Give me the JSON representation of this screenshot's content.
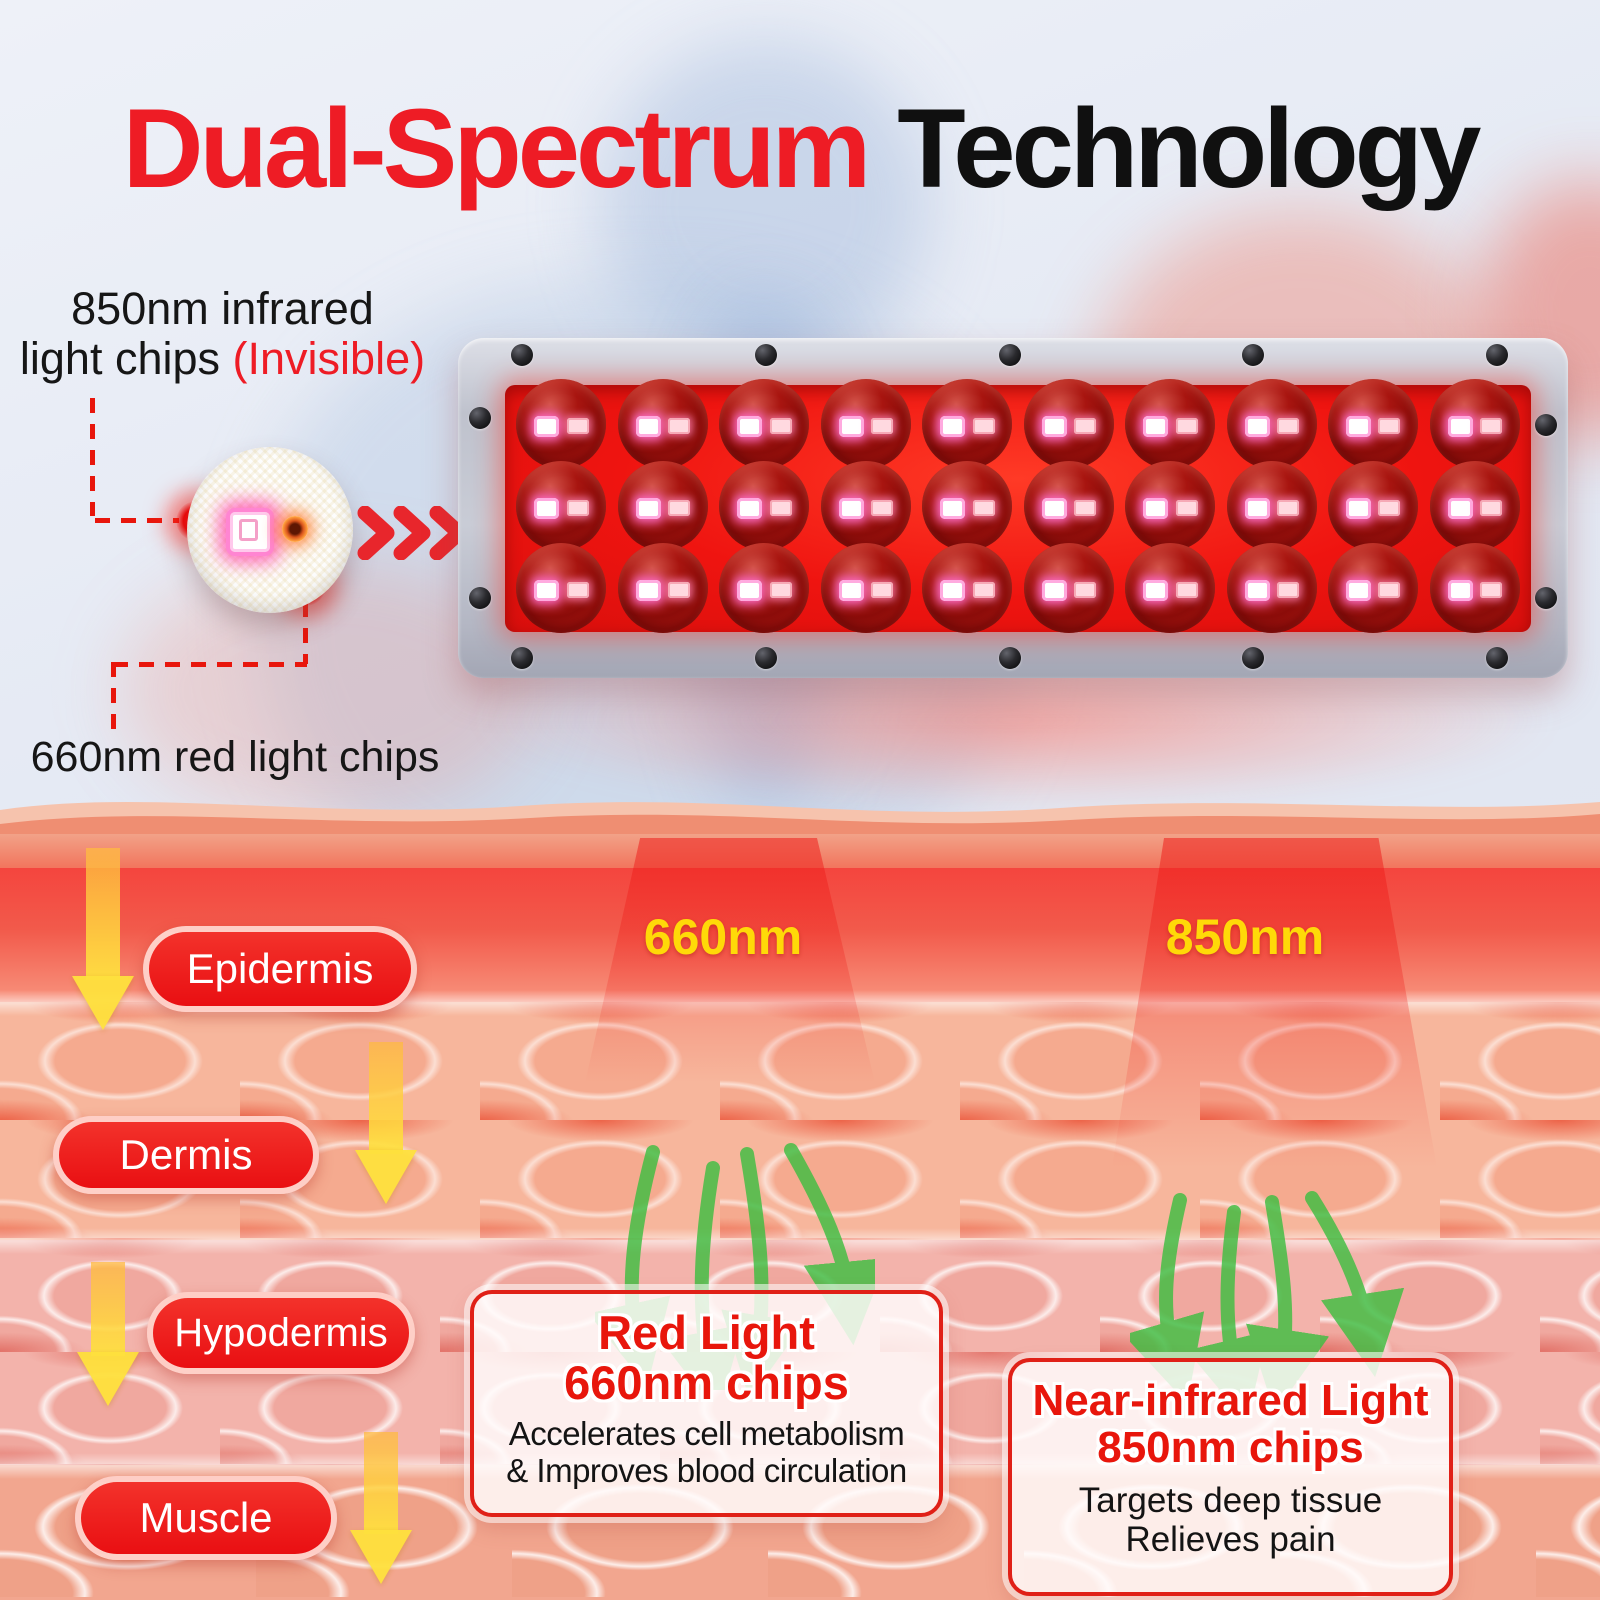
{
  "title": {
    "highlight": "Dual-Spectrum",
    "rest": "Technology"
  },
  "callout_850": {
    "line1": "850nm infrared",
    "line2_black": "light chips",
    "line2_red": "(Invisible)"
  },
  "callout_660": {
    "text": "660nm red light chips"
  },
  "beam_labels": {
    "left": "660nm",
    "right": "850nm"
  },
  "led_panel": {
    "rows": 3,
    "columns": 10,
    "chips_per_lens": 2
  },
  "skin_layers": [
    {
      "label": "Epidermis"
    },
    {
      "label": "Dermis"
    },
    {
      "label": "Hypodermis"
    },
    {
      "label": "Muscle"
    }
  ],
  "info_boxes": {
    "red_light": {
      "title_line1": "Red Light",
      "title_line2": "660nm chips",
      "body_line1": "Accelerates cell metabolism",
      "body_line2": "& Improves blood circulation"
    },
    "near_infrared": {
      "title_line1": "Near-infrared Light",
      "title_line2": "850nm chips",
      "body_line1": "Targets deep tissue",
      "body_line2": "Relieves pain"
    }
  },
  "colors": {
    "accent_red": "#ee1c25",
    "panel_red": "#ef1410",
    "label_yellow": "#ffd908",
    "arrow_green": "#3fbe42",
    "pill_red": "#ee1c23",
    "background": "#e3e8f3"
  }
}
